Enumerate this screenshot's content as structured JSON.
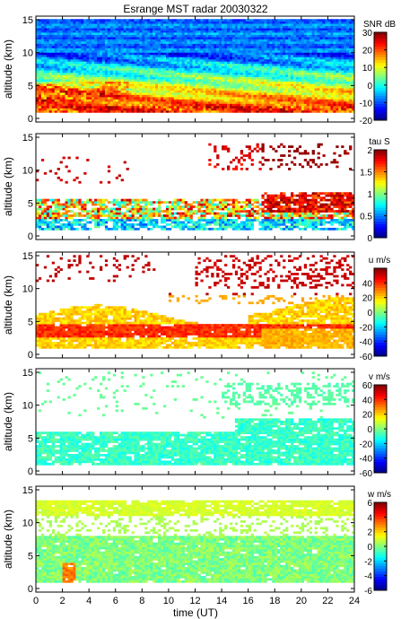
{
  "title": "Esrange MST radar 20030322",
  "chart_data": [
    {
      "type": "heatmap",
      "ylabel": "altitude (km)",
      "colorbar_label": "SNR dB",
      "x": {
        "label": "time (UT)",
        "range": [
          0,
          24
        ],
        "ticks": [
          0,
          2,
          4,
          6,
          8,
          10,
          12,
          14,
          16,
          18,
          20,
          22,
          24
        ]
      },
      "y": {
        "range": [
          0,
          15
        ],
        "ticks": [
          0,
          5,
          10,
          15
        ]
      },
      "colorbar": {
        "range": [
          -20,
          30
        ],
        "ticks": [
          -20,
          -10,
          0,
          10,
          20,
          30
        ]
      },
      "pattern": "snr"
    },
    {
      "type": "heatmap",
      "ylabel": "altitude (km)",
      "colorbar_label": "tau S",
      "x": {
        "label": "time (UT)",
        "range": [
          0,
          24
        ],
        "ticks": [
          0,
          2,
          4,
          6,
          8,
          10,
          12,
          14,
          16,
          18,
          20,
          22,
          24
        ]
      },
      "y": {
        "range": [
          0,
          15
        ],
        "ticks": [
          0,
          5,
          10,
          15
        ]
      },
      "colorbar": {
        "range": [
          0,
          2
        ],
        "ticks": [
          0,
          0.5,
          1,
          1.5,
          2
        ]
      },
      "pattern": "tau"
    },
    {
      "type": "heatmap",
      "ylabel": "altitude (km)",
      "colorbar_label": "u m/s",
      "x": {
        "label": "time (UT)",
        "range": [
          0,
          24
        ],
        "ticks": [
          0,
          2,
          4,
          6,
          8,
          10,
          12,
          14,
          16,
          18,
          20,
          22,
          24
        ]
      },
      "y": {
        "range": [
          0,
          15
        ],
        "ticks": [
          0,
          5,
          10,
          15
        ]
      },
      "colorbar": {
        "range": [
          -60,
          60
        ],
        "ticks": [
          -60,
          -40,
          -20,
          0,
          20,
          40
        ]
      },
      "pattern": "u"
    },
    {
      "type": "heatmap",
      "ylabel": "altitude (km)",
      "colorbar_label": "v m/s",
      "x": {
        "label": "time (UT)",
        "range": [
          0,
          24
        ],
        "ticks": [
          0,
          2,
          4,
          6,
          8,
          10,
          12,
          14,
          16,
          18,
          20,
          22,
          24
        ]
      },
      "y": {
        "range": [
          0,
          15
        ],
        "ticks": [
          0,
          5,
          10,
          15
        ]
      },
      "colorbar": {
        "range": [
          -60,
          60
        ],
        "ticks": [
          -60,
          -40,
          -20,
          0,
          20,
          40,
          60
        ]
      },
      "pattern": "v"
    },
    {
      "type": "heatmap",
      "ylabel": "altitude (km)",
      "colorbar_label": "w m/s",
      "x": {
        "label": "time (UT)",
        "range": [
          0,
          24
        ],
        "ticks": [
          0,
          2,
          4,
          6,
          8,
          10,
          12,
          14,
          16,
          18,
          20,
          22,
          24
        ]
      },
      "y": {
        "range": [
          0,
          15
        ],
        "ticks": [
          0,
          5,
          10,
          15
        ]
      },
      "colorbar": {
        "range": [
          -6,
          6
        ],
        "ticks": [
          -6,
          -4,
          -2,
          0,
          2,
          4,
          6
        ]
      },
      "pattern": "w"
    }
  ]
}
